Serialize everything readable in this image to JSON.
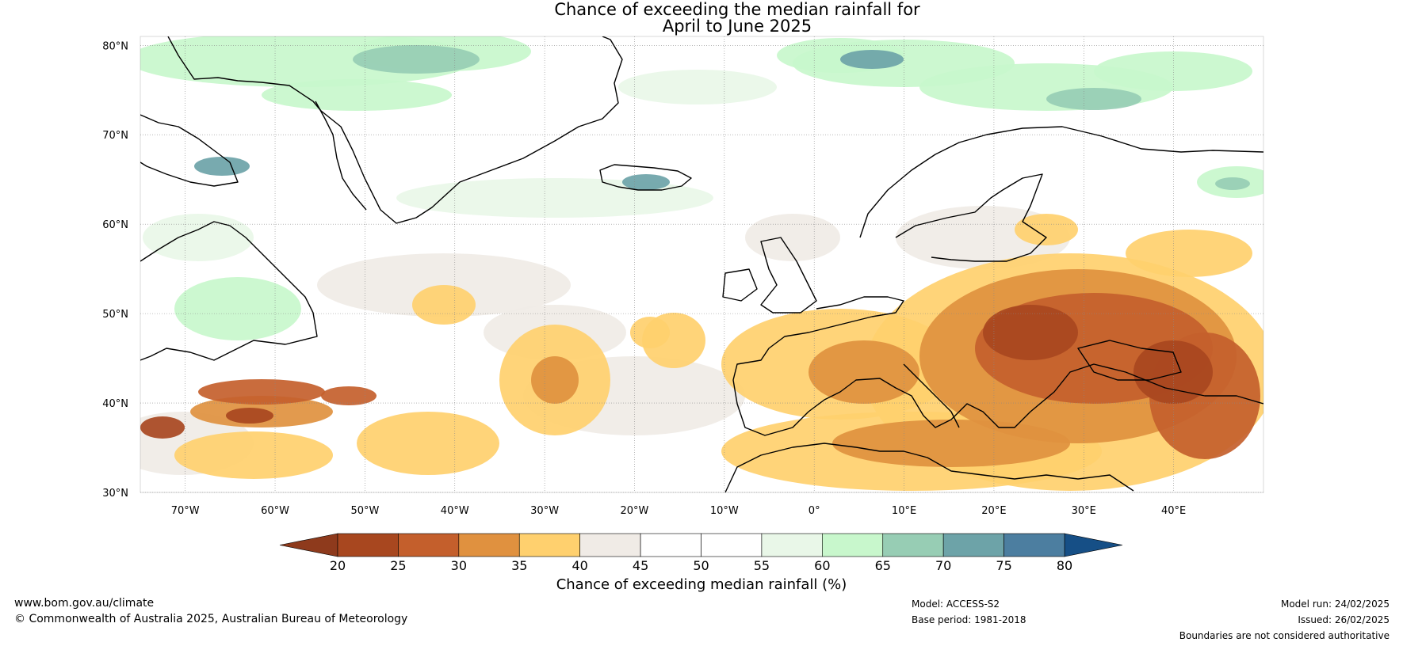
{
  "title_line1": "Chance of exceeding the median rainfall for",
  "title_line2": "April to June 2025",
  "map": {
    "lat_labels": [
      "80°N",
      "70°N",
      "60°N",
      "50°N",
      "40°N",
      "30°N"
    ],
    "lon_labels": [
      "70°W",
      "60°W",
      "50°W",
      "40°W",
      "30°W",
      "20°W",
      "10°W",
      "0°",
      "10°E",
      "20°E",
      "30°E",
      "40°E"
    ],
    "lon_range": [
      -75,
      50
    ],
    "lat_range": [
      30,
      81
    ]
  },
  "colorbar": {
    "ticks": [
      "20",
      "25",
      "30",
      "35",
      "40",
      "45",
      "50",
      "55",
      "60",
      "65",
      "70",
      "75",
      "80"
    ],
    "colors": [
      "#a8471f",
      "#c45f2c",
      "#e0913f",
      "#ffd06e",
      "#f0ebe6",
      "#ffffff",
      "#ffffff",
      "#e9f7e8",
      "#c8f7cc",
      "#97cdb4",
      "#6da3a8",
      "#4c7ea0"
    ],
    "under_color": "#8e3a1c",
    "over_color": "#164f86",
    "label": "Chance of exceeding median rainfall (%)"
  },
  "footer": {
    "website": "www.bom.gov.au/climate",
    "copyright": "© Commonwealth of Australia 2025, Australian Bureau of Meteorology",
    "model": "Model: ACCESS-S2",
    "base_period": "Base period: 1981-2018",
    "model_run": "Model run: 24/02/2025",
    "issued": "Issued: 26/02/2025",
    "disclaimer": "Boundaries are not considered authoritative"
  }
}
